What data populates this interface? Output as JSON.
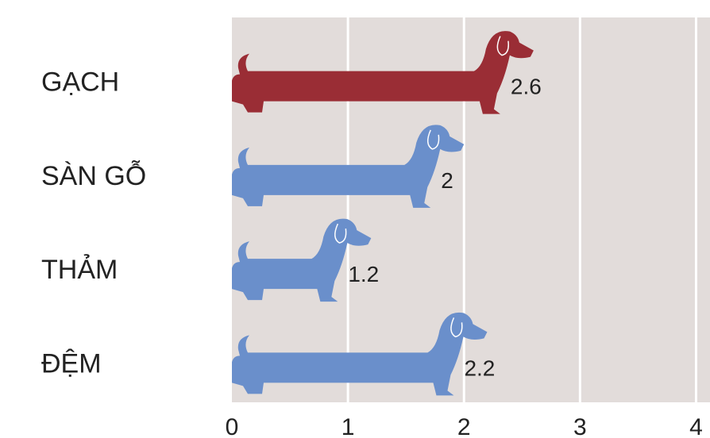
{
  "chart_data": {
    "type": "bar",
    "categories": [
      "GẠCH",
      "SÀN GỖ",
      "THẢM",
      "ĐỆM"
    ],
    "values": [
      2.6,
      2,
      1.2,
      2.2
    ],
    "colors": [
      "#9a2d35",
      "#6a8fcb",
      "#6a8fcb",
      "#6a8fcb"
    ],
    "xlim": [
      0,
      4.12
    ],
    "xticks": [
      0,
      1,
      2,
      3,
      4
    ],
    "grid": true
  }
}
